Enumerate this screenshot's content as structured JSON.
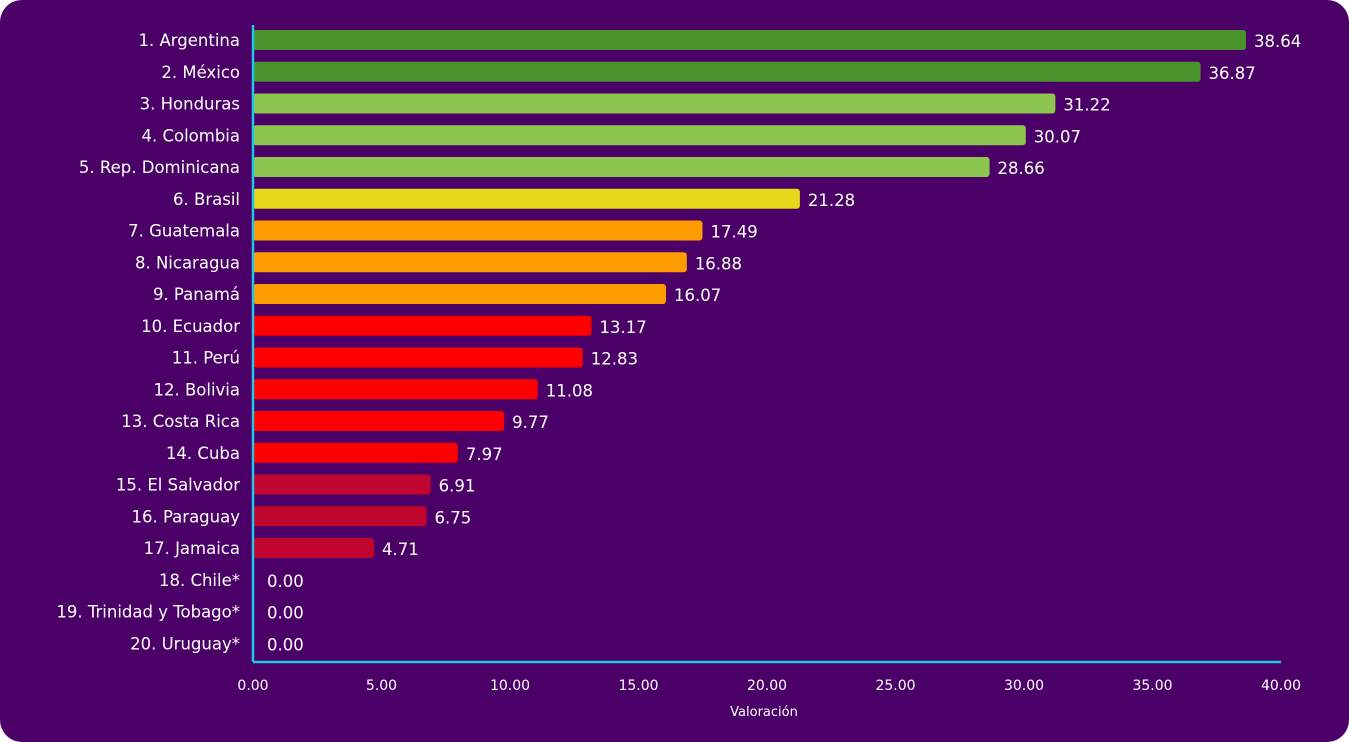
{
  "chart_data": {
    "type": "bar",
    "orientation": "horizontal",
    "categories": [
      "1. Argentina",
      "2. México",
      "3. Honduras",
      "4. Colombia",
      "5. Rep. Dominicana",
      "6. Brasil",
      "7. Guatemala",
      "8. Nicaragua",
      "9. Panamá",
      "10. Ecuador",
      "11. Perú",
      "12. Bolivia",
      "13. Costa Rica",
      "14. Cuba",
      "15. El Salvador",
      "16. Paraguay",
      "17. Jamaica",
      "18. Chile*",
      "19. Trinidad y Tobago*",
      "20. Uruguay*"
    ],
    "values": [
      38.64,
      36.87,
      31.22,
      30.07,
      28.66,
      21.28,
      17.49,
      16.88,
      16.07,
      13.17,
      12.83,
      11.08,
      9.77,
      7.97,
      6.91,
      6.75,
      4.71,
      0.0,
      0.0,
      0.0
    ],
    "data_labels": [
      "38.64",
      "36.87",
      "31.22",
      "30.07",
      "28.66",
      "21.28",
      "17.49",
      "16.88",
      "16.07",
      "13.17",
      "12.83",
      "11.08",
      "9.77",
      "7.97",
      "6.91",
      "6.75",
      "4.71",
      "0.00",
      "0.00",
      "0.00"
    ],
    "bar_colors": [
      "#4a922b",
      "#4a922b",
      "#8dc64f",
      "#8dc64f",
      "#8dc64f",
      "#e6d81a",
      "#ff9c00",
      "#ff9c00",
      "#ff9c00",
      "#ff0000",
      "#ff0000",
      "#ff0000",
      "#ff0000",
      "#ff0000",
      "#c0062f",
      "#c0062f",
      "#c0062f",
      "#c0062f",
      "#c0062f",
      "#c0062f"
    ],
    "xlabel": "Valoración",
    "ylabel": "",
    "xlim": [
      0,
      40
    ],
    "xticks": [
      "0.00",
      "5.00",
      "10.00",
      "15.00",
      "20.00",
      "25.00",
      "30.00",
      "35.00",
      "40.00"
    ],
    "grid": false,
    "background_color": "#4a0066",
    "axis_color": "#1ec8e6"
  }
}
